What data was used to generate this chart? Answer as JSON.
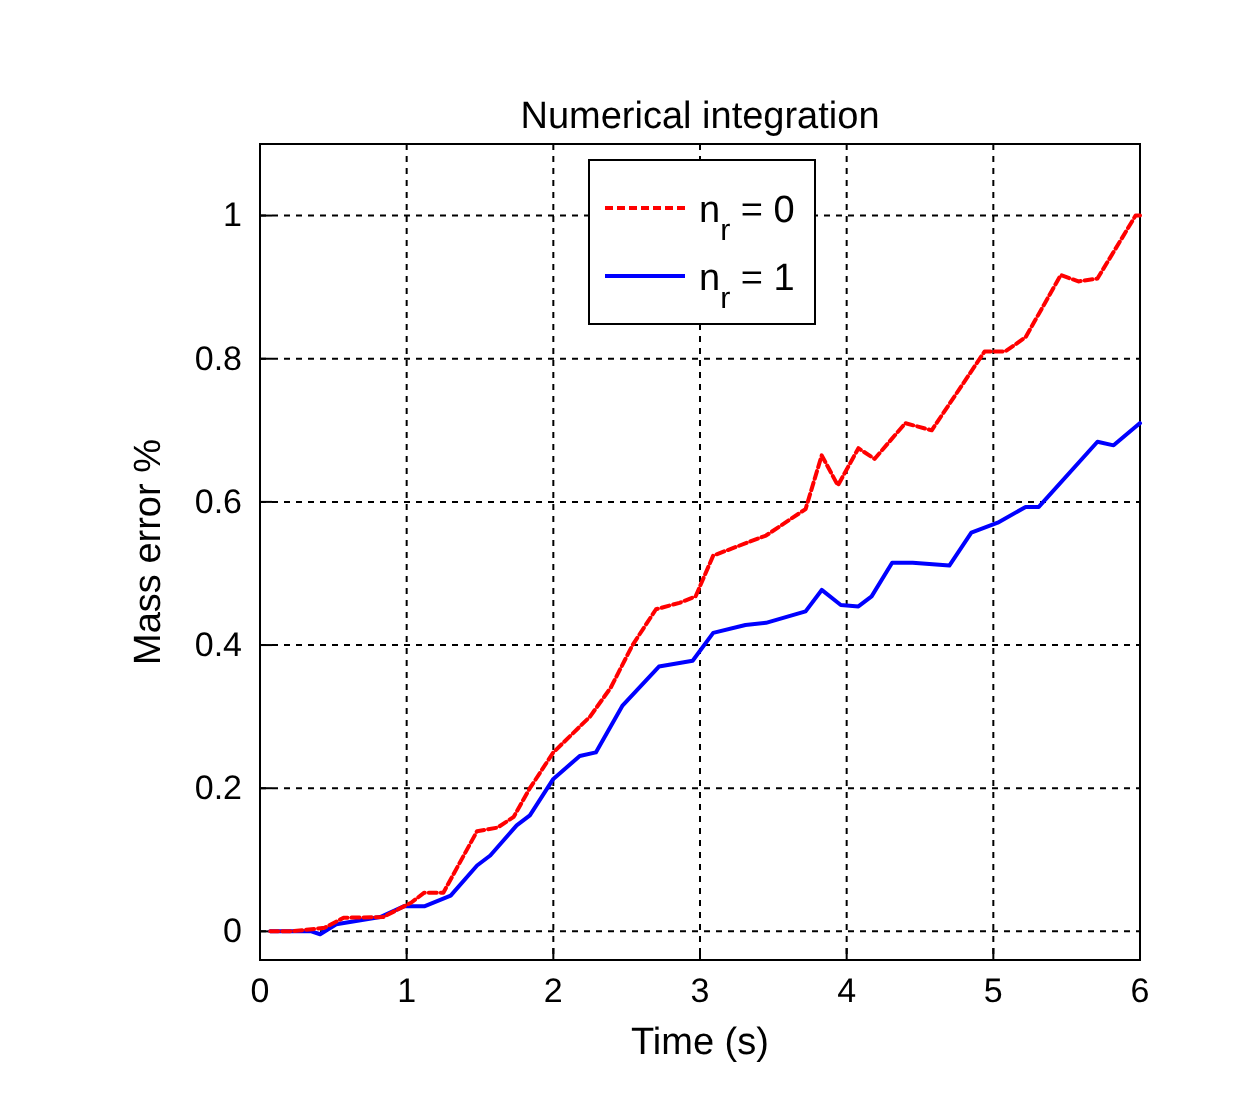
{
  "chart_data": {
    "type": "line",
    "title": "Numerical integration",
    "xlabel": "Time (s)",
    "ylabel": "Mass error %",
    "xlim": [
      0,
      6
    ],
    "ylim": [
      -0.04,
      1.1
    ],
    "xticks": [
      0,
      1,
      2,
      3,
      4,
      5,
      6
    ],
    "yticks": [
      0,
      0.2,
      0.4,
      0.6,
      0.8,
      1
    ],
    "grid": true,
    "legend": "top",
    "series": [
      {
        "name": "n$_{r}$ = 0",
        "color": "#ff0000",
        "line_style": "dashed",
        "x": [
          0.07,
          0.21,
          0.44,
          0.57,
          0.84,
          1.03,
          1.12,
          1.25,
          1.48,
          1.62,
          1.73,
          1.84,
          2.0,
          2.25,
          2.39,
          2.54,
          2.7,
          2.86,
          2.97,
          3.09,
          3.45,
          3.72,
          3.83,
          3.94,
          4.08,
          4.19,
          4.4,
          4.58,
          4.94,
          5.08,
          5.22,
          5.46,
          5.58,
          5.71,
          5.97,
          6.0
        ],
        "values": [
          0,
          0,
          0.005,
          0.019,
          0.02,
          0.04,
          0.054,
          0.054,
          0.14,
          0.145,
          0.16,
          0.2,
          0.25,
          0.3,
          0.34,
          0.4,
          0.45,
          0.459,
          0.468,
          0.525,
          0.553,
          0.59,
          0.665,
          0.623,
          0.675,
          0.66,
          0.71,
          0.7,
          0.81,
          0.81,
          0.83,
          0.917,
          0.908,
          0.912,
          1.0,
          1.0
        ]
      },
      {
        "name": "n$_{r}$ = 1",
        "color": "#0000ff",
        "line_style": "solid",
        "x": [
          0.07,
          0.35,
          0.41,
          0.52,
          0.82,
          0.98,
          1.12,
          1.3,
          1.48,
          1.57,
          1.75,
          1.84,
          2.0,
          2.18,
          2.29,
          2.47,
          2.72,
          2.95,
          3.09,
          3.31,
          3.45,
          3.72,
          3.83,
          3.96,
          4.08,
          4.17,
          4.31,
          4.45,
          4.7,
          4.85,
          5.03,
          5.22,
          5.31,
          5.71,
          5.82,
          5.97,
          6.0
        ],
        "values": [
          0,
          0,
          -0.004,
          0.01,
          0.02,
          0.035,
          0.035,
          0.05,
          0.092,
          0.106,
          0.148,
          0.162,
          0.213,
          0.245,
          0.25,
          0.315,
          0.37,
          0.378,
          0.417,
          0.428,
          0.431,
          0.447,
          0.477,
          0.456,
          0.454,
          0.468,
          0.515,
          0.515,
          0.511,
          0.557,
          0.571,
          0.593,
          0.593,
          0.684,
          0.679,
          0.705,
          0.71
        ]
      }
    ]
  }
}
